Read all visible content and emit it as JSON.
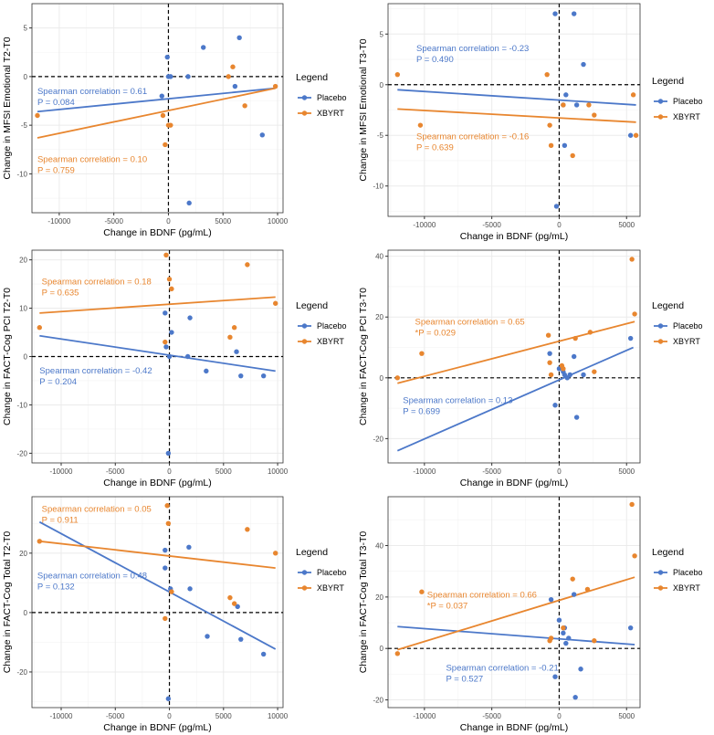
{
  "colors": {
    "placebo": "#4C78C9",
    "xbyrt": "#E8862F",
    "grid": "#EBEBEB",
    "axis": "#333333",
    "ref": "#000000"
  },
  "legend": {
    "title": "Legend",
    "items": [
      "Placebo",
      "XBYRT"
    ]
  },
  "chart_data": [
    {
      "id": "p1",
      "type": "scatter",
      "xlabel": "Change in BDNF (pg/mL)",
      "ylabel": "Change in MFSI Emotional T2-T0",
      "xlim": [
        -12500,
        10500
      ],
      "ylim": [
        -14,
        7.5
      ],
      "xticks": [
        -10000,
        -5000,
        0,
        5000,
        10000
      ],
      "yticks": [
        -10,
        -5,
        0,
        5
      ],
      "legend_placement": "right",
      "series": [
        {
          "name": "Placebo",
          "points": [
            [
              -100,
              2
            ],
            [
              -600,
              -2
            ],
            [
              0,
              0
            ],
            [
              200,
              0
            ],
            [
              1800,
              0
            ],
            [
              3200,
              3
            ],
            [
              6500,
              4
            ],
            [
              6100,
              -1
            ],
            [
              8600,
              -6
            ],
            [
              1900,
              -13
            ]
          ],
          "fit": [
            [
              -12000,
              -3.6
            ],
            [
              9800,
              -1.2
            ]
          ]
        },
        {
          "name": "XBYRT",
          "points": [
            [
              -12000,
              -4
            ],
            [
              -500,
              -4
            ],
            [
              -300,
              -7
            ],
            [
              0,
              -5
            ],
            [
              200,
              -5
            ],
            [
              5500,
              0
            ],
            [
              5900,
              1
            ],
            [
              7000,
              -3
            ],
            [
              9800,
              -1
            ]
          ],
          "fit": [
            [
              -12000,
              -6.3
            ],
            [
              9800,
              -1.2
            ]
          ]
        }
      ],
      "annotations": [
        {
          "series": "Placebo",
          "lines": [
            "Spearman correlation = 0.61",
            "P = 0.084"
          ],
          "x": -12000,
          "y": -1.8
        },
        {
          "series": "XBYRT",
          "lines": [
            "Spearman correlation = 0.10",
            "P = 0.759"
          ],
          "x": -12000,
          "y": -8.8
        }
      ]
    },
    {
      "id": "p2",
      "type": "scatter",
      "xlabel": "Change in BDNF (pg/mL)",
      "ylabel": "Change in MFSI Emotional T3-T0",
      "xlim": [
        -12700,
        6000
      ],
      "ylim": [
        -13,
        8
      ],
      "xticks": [
        -10000,
        -5000,
        0,
        5000
      ],
      "yticks": [
        -10,
        -5,
        0,
        5
      ],
      "legend_placement": "right",
      "series": [
        {
          "name": "Placebo",
          "points": [
            [
              -300,
              7
            ],
            [
              1100,
              7
            ],
            [
              -200,
              -12
            ],
            [
              300,
              -2
            ],
            [
              400,
              -6
            ],
            [
              500,
              -1
            ],
            [
              1300,
              -2
            ],
            [
              1800,
              2
            ],
            [
              5300,
              -5
            ]
          ],
          "fit": [
            [
              -12000,
              -0.5
            ],
            [
              5700,
              -2
            ]
          ]
        },
        {
          "name": "XBYRT",
          "points": [
            [
              -12000,
              1
            ],
            [
              -10300,
              -4
            ],
            [
              -900,
              1
            ],
            [
              -700,
              -4
            ],
            [
              -600,
              -6
            ],
            [
              300,
              -2
            ],
            [
              1000,
              -7
            ],
            [
              2200,
              -2
            ],
            [
              2600,
              -3
            ],
            [
              5500,
              -1
            ],
            [
              5700,
              -5
            ]
          ],
          "fit": [
            [
              -12000,
              -2.4
            ],
            [
              5700,
              -3.7
            ]
          ]
        }
      ],
      "annotations": [
        {
          "series": "Placebo",
          "lines": [
            "Spearman correlation = -0.23",
            "P = 0.490"
          ],
          "x": -10600,
          "y": 3.3
        },
        {
          "series": "XBYRT",
          "lines": [
            "Spearman correlation = -0.16",
            "P = 0.639"
          ],
          "x": -10600,
          "y": -5.4
        }
      ]
    },
    {
      "id": "p3",
      "type": "scatter",
      "xlabel": "Change in BDNF (pg/mL)",
      "ylabel": "Change in FACT-Cog PCI T2-T0",
      "xlim": [
        -12700,
        10500
      ],
      "ylim": [
        -22,
        22
      ],
      "xticks": [
        -10000,
        -5000,
        0,
        5000,
        10000
      ],
      "yticks": [
        -20,
        -10,
        0,
        10,
        20
      ],
      "legend_placement": "right",
      "series": [
        {
          "name": "Placebo",
          "points": [
            [
              -400,
              9
            ],
            [
              -300,
              2
            ],
            [
              200,
              5
            ],
            [
              1900,
              8
            ],
            [
              0,
              0
            ],
            [
              1700,
              0
            ],
            [
              3400,
              -3
            ],
            [
              6200,
              1
            ],
            [
              6600,
              -4
            ],
            [
              8700,
              -4
            ],
            [
              -100,
              -20
            ]
          ],
          "fit": [
            [
              -12000,
              4.3
            ],
            [
              9800,
              -3
            ]
          ]
        },
        {
          "name": "XBYRT",
          "points": [
            [
              -12000,
              6
            ],
            [
              -300,
              21
            ],
            [
              200,
              14
            ],
            [
              -400,
              3
            ],
            [
              0,
              16
            ],
            [
              5600,
              4
            ],
            [
              6000,
              6
            ],
            [
              7200,
              19
            ],
            [
              9800,
              11
            ]
          ],
          "fit": [
            [
              -12000,
              9
            ],
            [
              9800,
              12.3
            ]
          ]
        }
      ],
      "annotations": [
        {
          "series": "XBYRT",
          "lines": [
            "Spearman correlation = 0.18",
            "P = 0.635"
          ],
          "x": -11800,
          "y": 14.9
        },
        {
          "series": "Placebo",
          "lines": [
            "Spearman correlation = -0.42",
            "P = 0.204"
          ],
          "x": -12000,
          "y": -3.5
        }
      ]
    },
    {
      "id": "p4",
      "type": "scatter",
      "xlabel": "Change in BDNF (pg/mL)",
      "ylabel": "Change in FACT-Cog PCI T3-T0",
      "xlim": [
        -12700,
        6000
      ],
      "ylim": [
        -28,
        42
      ],
      "xticks": [
        -10000,
        -5000,
        0,
        5000
      ],
      "yticks": [
        -20,
        0,
        20,
        40
      ],
      "legend_placement": "right",
      "series": [
        {
          "name": "Placebo",
          "points": [
            [
              -700,
              8
            ],
            [
              0,
              3
            ],
            [
              -300,
              -9
            ],
            [
              300,
              2
            ],
            [
              400,
              1
            ],
            [
              600,
              0
            ],
            [
              800,
              1
            ],
            [
              1100,
              7
            ],
            [
              1300,
              -13
            ],
            [
              1800,
              1
            ],
            [
              5300,
              13
            ]
          ],
          "fit": [
            [
              -12000,
              -24
            ],
            [
              5500,
              10
            ]
          ]
        },
        {
          "name": "XBYRT",
          "points": [
            [
              -12000,
              0
            ],
            [
              -10200,
              8
            ],
            [
              -800,
              14
            ],
            [
              -700,
              5
            ],
            [
              -600,
              1
            ],
            [
              200,
              4
            ],
            [
              300,
              3
            ],
            [
              1200,
              13
            ],
            [
              2300,
              15
            ],
            [
              2600,
              2
            ],
            [
              5400,
              39
            ],
            [
              5600,
              21
            ]
          ],
          "fit": [
            [
              -12000,
              -1.8
            ],
            [
              5600,
              18.5
            ]
          ]
        }
      ],
      "annotations": [
        {
          "series": "XBYRT",
          "lines": [
            "Spearman correlation = 0.65",
            "*P = 0.029"
          ],
          "x": -10700,
          "y": 17.5
        },
        {
          "series": "Placebo",
          "lines": [
            "Spearman correlation = 0.13",
            "P = 0.699"
          ],
          "x": -11600,
          "y": -8.3
        }
      ]
    },
    {
      "id": "p5",
      "type": "scatter",
      "xlabel": "Change in BDNF (pg/mL)",
      "ylabel": "Change in FACT-Cog Total T2-T0",
      "xlim": [
        -12700,
        10500
      ],
      "ylim": [
        -32,
        39
      ],
      "xticks": [
        -10000,
        -5000,
        0,
        5000,
        10000
      ],
      "yticks": [
        -20,
        0,
        20
      ],
      "legend_placement": "right",
      "series": [
        {
          "name": "Placebo",
          "points": [
            [
              -400,
              21
            ],
            [
              -400,
              15
            ],
            [
              100,
              8
            ],
            [
              1800,
              22
            ],
            [
              1900,
              8
            ],
            [
              3500,
              -8
            ],
            [
              6300,
              2
            ],
            [
              6600,
              -9
            ],
            [
              8700,
              -14
            ],
            [
              -100,
              -29
            ]
          ],
          "fit": [
            [
              -12000,
              30.5
            ],
            [
              9800,
              -12.3
            ]
          ]
        },
        {
          "name": "XBYRT",
          "points": [
            [
              -12000,
              24
            ],
            [
              -200,
              36
            ],
            [
              -100,
              30
            ],
            [
              -400,
              -2
            ],
            [
              200,
              7
            ],
            [
              5600,
              5
            ],
            [
              6000,
              3
            ],
            [
              7200,
              28
            ],
            [
              9800,
              20
            ]
          ],
          "fit": [
            [
              -12000,
              24
            ],
            [
              9800,
              15
            ]
          ]
        }
      ],
      "annotations": [
        {
          "series": "XBYRT",
          "lines": [
            "Spearman correlation = 0.05",
            "P = 0.911"
          ],
          "x": -11800,
          "y": 34
        },
        {
          "series": "Placebo",
          "lines": [
            "Spearman correlation = 0.48",
            "P = 0.132"
          ],
          "x": -12200,
          "y": 11.5
        }
      ]
    },
    {
      "id": "p6",
      "type": "scatter",
      "xlabel": "Change in BDNF (pg/mL)",
      "ylabel": "Change in FACT-Cog Total T3-T0",
      "xlim": [
        -12700,
        6000
      ],
      "ylim": [
        -23,
        59
      ],
      "xticks": [
        -10000,
        -5000,
        0,
        5000
      ],
      "yticks": [
        -20,
        0,
        20,
        40
      ],
      "legend_placement": "right",
      "series": [
        {
          "name": "Placebo",
          "points": [
            [
              -600,
              19
            ],
            [
              0,
              11
            ],
            [
              300,
              6
            ],
            [
              400,
              8
            ],
            [
              500,
              2
            ],
            [
              700,
              4
            ],
            [
              1100,
              21
            ],
            [
              1600,
              -8
            ],
            [
              -300,
              -11
            ],
            [
              1200,
              -19
            ],
            [
              5300,
              8
            ]
          ],
          "fit": [
            [
              -12000,
              8.5
            ],
            [
              5600,
              1.5
            ]
          ]
        },
        {
          "name": "XBYRT",
          "points": [
            [
              -12000,
              -2
            ],
            [
              -10200,
              22
            ],
            [
              -700,
              3
            ],
            [
              -600,
              4
            ],
            [
              300,
              8
            ],
            [
              1000,
              27
            ],
            [
              2100,
              23
            ],
            [
              2600,
              3
            ],
            [
              5400,
              56
            ],
            [
              5600,
              36
            ]
          ],
          "fit": [
            [
              -12000,
              -0.5
            ],
            [
              5600,
              27.7
            ]
          ]
        }
      ],
      "annotations": [
        {
          "series": "XBYRT",
          "lines": [
            "Spearman correlation = 0.66",
            "*P = 0.037"
          ],
          "x": -9800,
          "y": 19.7
        },
        {
          "series": "Placebo",
          "lines": [
            "Spearman correlation = -0.21",
            "P = 0.527"
          ],
          "x": -8400,
          "y": -8.7
        }
      ]
    }
  ]
}
